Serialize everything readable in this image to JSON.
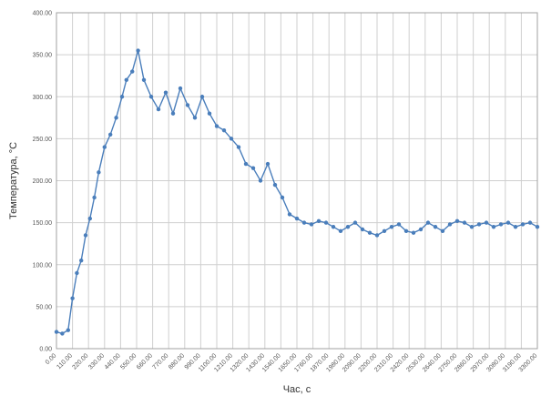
{
  "chart_data": {
    "type": "line",
    "xlabel": "Час, с",
    "ylabel": "Температура, °С",
    "ylim": [
      0,
      400
    ],
    "xlim": [
      0,
      3300
    ],
    "y_ticks": [
      "0.00",
      "50.00",
      "100.00",
      "150.00",
      "200.00",
      "250.00",
      "300.00",
      "350.00",
      "400.00"
    ],
    "x_ticks": [
      "0.00",
      "110.00",
      "220.00",
      "330.00",
      "440.00",
      "550.00",
      "660.00",
      "770.00",
      "880.00",
      "990.00",
      "1100.00",
      "1210.00",
      "1320.00",
      "1430.00",
      "1540.00",
      "1650.00",
      "1760.00",
      "1870.00",
      "1980.00",
      "2090.00",
      "2200.00",
      "2310.00",
      "2420.00",
      "2530.00",
      "2640.00",
      "2750.00",
      "2860.00",
      "2970.00",
      "3080.00",
      "3190.00",
      "3300.00"
    ],
    "grid": true,
    "series": [
      {
        "color": "#4a7ebb",
        "marker": "circle",
        "x": [
          0,
          40,
          80,
          110,
          140,
          170,
          200,
          230,
          260,
          290,
          330,
          370,
          410,
          450,
          480,
          520,
          560,
          600,
          650,
          700,
          750,
          800,
          850,
          900,
          950,
          1000,
          1050,
          1100,
          1150,
          1200,
          1250,
          1300,
          1350,
          1400,
          1450,
          1500,
          1550,
          1600,
          1650,
          1700,
          1750,
          1800,
          1850,
          1900,
          1950,
          2000,
          2050,
          2100,
          2150,
          2200,
          2250,
          2300,
          2350,
          2400,
          2450,
          2500,
          2550,
          2600,
          2650,
          2700,
          2750,
          2800,
          2850,
          2900,
          2950,
          3000,
          3050,
          3100,
          3150,
          3200,
          3250,
          3300
        ],
        "y": [
          20,
          18,
          22,
          60,
          90,
          105,
          135,
          155,
          180,
          210,
          240,
          255,
          275,
          300,
          320,
          330,
          355,
          320,
          300,
          285,
          305,
          280,
          310,
          290,
          275,
          300,
          280,
          265,
          260,
          250,
          240,
          220,
          215,
          200,
          220,
          195,
          180,
          160,
          155,
          150,
          148,
          152,
          150,
          145,
          140,
          145,
          150,
          142,
          138,
          135,
          140,
          145,
          148,
          140,
          138,
          142,
          150,
          145,
          140,
          148,
          152,
          150,
          145,
          148,
          150,
          145,
          148,
          150,
          145,
          148,
          150,
          145
        ]
      }
    ]
  }
}
